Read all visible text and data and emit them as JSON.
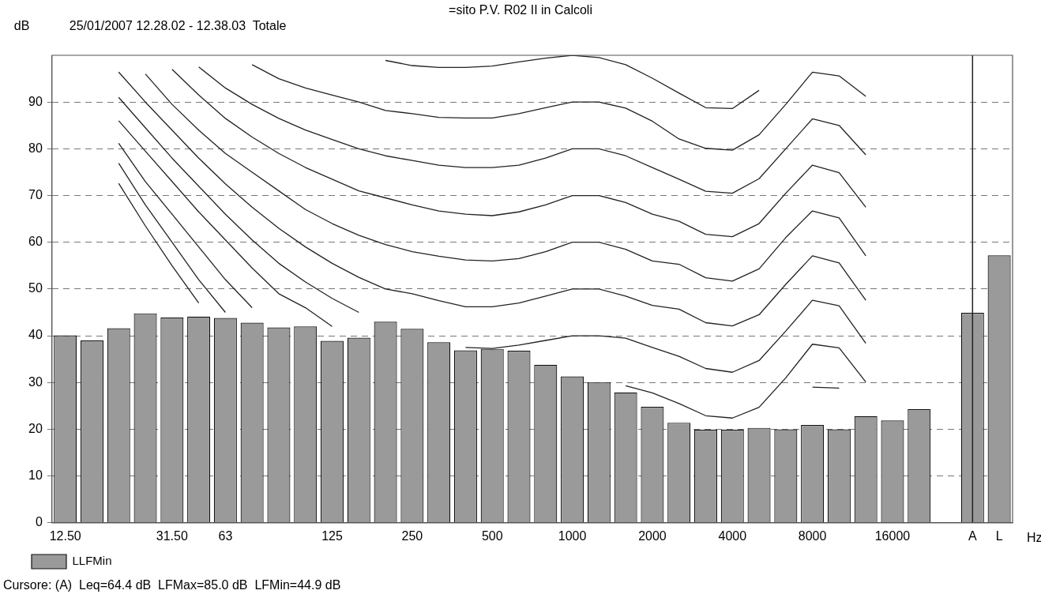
{
  "chart_data": {
    "type": "bar",
    "title": "=sito P.V. R02 II in Calcoli",
    "subtitle": "25/01/2007 12.28.02 - 12.38.03  Totale",
    "ylabel": "dB",
    "xlabel": "Hz",
    "annotations": [
      "Cursore: (A)  Leq=64.4 dB  LFMax=85.0 dB  LFMin=44.9 dB"
    ],
    "categories": [
      "12.50",
      null,
      null,
      null,
      "31.50",
      null,
      "63",
      null,
      null,
      null,
      "125",
      null,
      null,
      "250",
      null,
      null,
      "500",
      null,
      null,
      "1000",
      null,
      null,
      "2000",
      null,
      null,
      "4000",
      null,
      null,
      "8000",
      null,
      null,
      "16000",
      null,
      null,
      "A",
      "L"
    ],
    "series": [
      {
        "name": "LLFMin",
        "color": "#9a9a9a",
        "values": [
          40.1,
          39.0,
          41.6,
          44.8,
          43.9,
          44.1,
          43.8,
          42.8,
          41.8,
          42.0,
          38.9,
          39.6,
          43.0,
          41.5,
          38.6,
          36.9,
          37.2,
          36.8,
          33.8,
          31.3,
          30.1,
          27.9,
          24.8,
          21.4,
          19.9,
          19.9,
          20.3,
          20.0,
          20.9,
          20.0,
          22.8,
          21.9,
          24.3,
          null,
          44.9,
          57.2
        ]
      },
      {
        "type": "line",
        "color": "#222222",
        "values": [
          null,
          null,
          72.6,
          63.5,
          55,
          47,
          null,
          null,
          null,
          null,
          null,
          null,
          null,
          null,
          null,
          null,
          null,
          null,
          null,
          null,
          null,
          null,
          null,
          null,
          null,
          null,
          null,
          null,
          null,
          null,
          null,
          null,
          null,
          null,
          null,
          null
        ]
      },
      {
        "type": "line",
        "color": "#222222",
        "values": [
          null,
          null,
          76.9,
          68,
          60,
          52,
          45,
          null,
          null,
          null,
          null,
          null,
          null,
          null,
          null,
          null,
          null,
          null,
          null,
          null,
          null,
          null,
          null,
          null,
          null,
          null,
          null,
          null,
          null,
          null,
          null,
          null,
          null,
          null,
          null,
          null
        ]
      },
      {
        "type": "line",
        "color": "#222222",
        "values": [
          null,
          null,
          81.2,
          73,
          66,
          59,
          52,
          46,
          null,
          null,
          null,
          null,
          null,
          null,
          null,
          null,
          null,
          null,
          null,
          null,
          null,
          null,
          null,
          null,
          null,
          null,
          null,
          null,
          29.0,
          28.8,
          null,
          null,
          null,
          null,
          null,
          null
        ]
      },
      {
        "type": "line",
        "color": "#222222",
        "values": [
          null,
          null,
          86,
          79.5,
          73,
          66.5,
          60.5,
          54.5,
          49,
          46,
          42,
          null,
          null,
          null,
          null,
          null,
          null,
          null,
          null,
          null,
          null,
          29.3,
          27.8,
          25.5,
          22.9,
          22.4,
          24.7,
          31,
          38.2,
          37.4,
          30.1,
          null,
          null,
          null,
          null,
          null
        ]
      },
      {
        "type": "line",
        "color": "#222222",
        "values": [
          null,
          null,
          91,
          84.5,
          78,
          72,
          66,
          60.5,
          55.5,
          51.5,
          48,
          45,
          null,
          null,
          null,
          37.5,
          37.3,
          38,
          39,
          40,
          40,
          39.5,
          37.5,
          35.6,
          33.0,
          32.2,
          34.7,
          41,
          47.6,
          46.4,
          38.4,
          null,
          null,
          null,
          null,
          null
        ]
      },
      {
        "type": "line",
        "color": "#222222",
        "values": [
          null,
          null,
          96.4,
          90,
          84,
          78,
          72.5,
          67.5,
          63,
          59,
          55.5,
          52.5,
          50,
          49,
          47.5,
          46.2,
          46.2,
          47,
          48.5,
          50,
          50,
          48.5,
          46.5,
          45.7,
          42.8,
          42.1,
          44.5,
          51,
          57.1,
          55.6,
          47.6,
          null,
          null,
          null,
          null,
          null
        ]
      },
      {
        "type": "line",
        "color": "#222222",
        "values": [
          null,
          null,
          null,
          96,
          89.5,
          84,
          79,
          75,
          71,
          67,
          64,
          61.5,
          59.5,
          58,
          57,
          56.2,
          56,
          56.5,
          58,
          60,
          60,
          58.5,
          56,
          55.3,
          52.4,
          51.7,
          54.3,
          61,
          66.7,
          65.2,
          57.1,
          null,
          null,
          null,
          null,
          null
        ]
      },
      {
        "type": "line",
        "color": "#222222",
        "values": [
          null,
          null,
          null,
          null,
          97,
          91.5,
          86.5,
          82.5,
          79,
          76,
          73.5,
          71,
          69.5,
          68,
          66.7,
          66,
          65.7,
          66.5,
          68,
          70,
          70,
          68.5,
          66,
          64.5,
          61.7,
          61.2,
          64.0,
          70.5,
          76.5,
          74.9,
          67.5,
          null,
          null,
          null,
          null,
          null
        ]
      },
      {
        "type": "line",
        "color": "#222222",
        "values": [
          null,
          null,
          null,
          null,
          null,
          97.5,
          93,
          89.5,
          86.5,
          84,
          82,
          80,
          78.5,
          77.5,
          76.5,
          76,
          76,
          76.5,
          78,
          80,
          80,
          78.5,
          76,
          73.5,
          70.9,
          70.5,
          73.6,
          80,
          86.4,
          85,
          78.7,
          null,
          null,
          null,
          null,
          null
        ]
      },
      {
        "type": "line",
        "color": "#222222",
        "values": [
          null,
          null,
          null,
          null,
          null,
          null,
          null,
          98,
          95,
          93,
          91.5,
          90,
          88.2,
          87.5,
          86.7,
          86.6,
          86.6,
          87.5,
          88.8,
          90,
          90,
          88.7,
          85.9,
          82.1,
          80.1,
          79.7,
          83.0,
          89.5,
          96.4,
          95.6,
          91.2,
          null,
          null,
          null,
          null,
          null
        ]
      },
      {
        "type": "line",
        "color": "#222222",
        "values": [
          null,
          null,
          null,
          null,
          null,
          null,
          null,
          null,
          null,
          null,
          null,
          null,
          98.9,
          97.8,
          97.4,
          97.4,
          97.7,
          98.6,
          99.4,
          100,
          99.5,
          98,
          95.1,
          91.9,
          88.8,
          88.6,
          92.5,
          null,
          null,
          null,
          null,
          null,
          null,
          null,
          null,
          null
        ]
      }
    ],
    "ylim": [
      0,
      100
    ],
    "yticks": [
      0,
      10,
      20,
      30,
      40,
      50,
      60,
      70,
      80,
      90
    ],
    "grid": "y",
    "legend": "bottom left",
    "ref_lines": [
      {
        "axis": "x",
        "value": "A",
        "color": "#222222"
      }
    ]
  }
}
